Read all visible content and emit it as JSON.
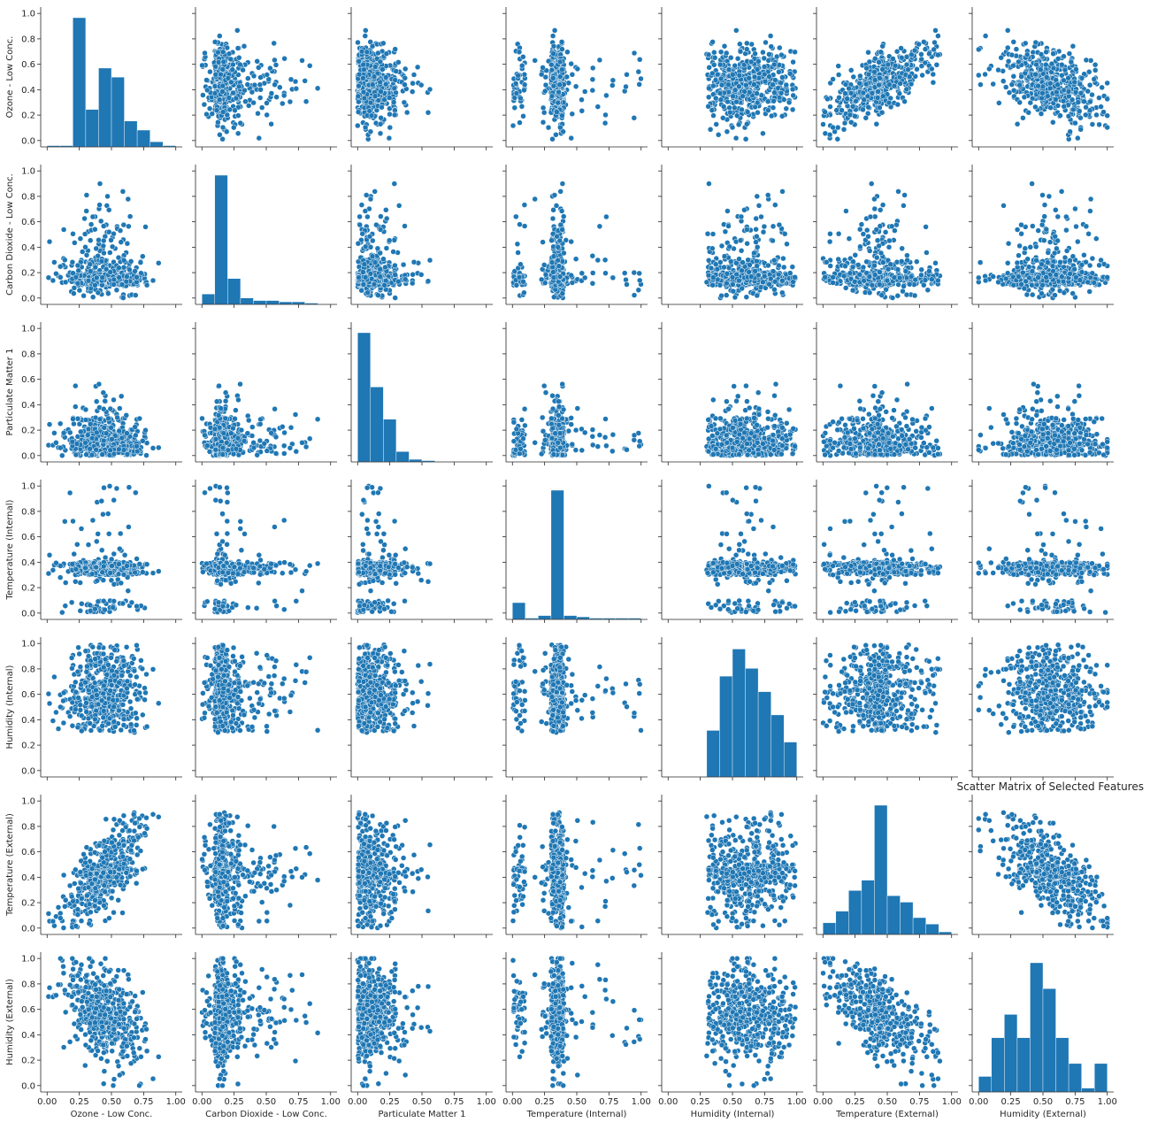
{
  "chart_data": {
    "type": "scatter",
    "kind": "pairplot",
    "title": "Scatter Matrix of Selected Features",
    "variables": [
      "Ozone - Low Conc.",
      "Carbon Dioxide - Low Conc.",
      "Particulate Matter 1",
      "Temperature (Internal)",
      "Humidity (Internal)",
      "Temperature (External)",
      "Humidity (External)"
    ],
    "x_ticks": [
      "0.00",
      "0.25",
      "0.50",
      "0.75",
      "1.00"
    ],
    "x_tick_values": [
      0,
      0.25,
      0.5,
      0.75,
      1.0
    ],
    "y_ticks": [
      "0.0",
      "0.2",
      "0.4",
      "0.6",
      "0.8",
      "1.0"
    ],
    "y_tick_values": [
      0,
      0.2,
      0.4,
      0.6,
      0.8,
      1.0
    ],
    "xlim": [
      -0.05,
      1.05
    ],
    "ylim": [
      -0.05,
      1.05
    ],
    "color": "#1f77b4",
    "grid": false,
    "histograms": [
      {
        "variable": "Ozone - Low Conc.",
        "bin_edges": [
          0,
          0.1,
          0.2,
          0.3,
          0.4,
          0.5,
          0.6,
          0.7,
          0.8,
          0.9,
          1.0
        ],
        "heights": [
          0.01,
          0.01,
          1.0,
          0.29,
          0.61,
          0.54,
          0.2,
          0.13,
          0.04,
          0.01
        ]
      },
      {
        "variable": "Carbon Dioxide - Low Conc.",
        "bin_edges": [
          0,
          0.1,
          0.2,
          0.3,
          0.4,
          0.5,
          0.6,
          0.7,
          0.8,
          0.9,
          1.0
        ],
        "heights": [
          0.08,
          1.0,
          0.2,
          0.05,
          0.03,
          0.03,
          0.02,
          0.02,
          0.01,
          0.0
        ]
      },
      {
        "variable": "Particulate Matter 1",
        "bin_edges": [
          0,
          0.1,
          0.2,
          0.3,
          0.4,
          0.5,
          0.6,
          0.7,
          0.8,
          0.9,
          1.0
        ],
        "heights": [
          1.0,
          0.58,
          0.33,
          0.08,
          0.02,
          0.01,
          0.0,
          0.0,
          0.0,
          0.0
        ]
      },
      {
        "variable": "Temperature (Internal)",
        "bin_edges": [
          0,
          0.1,
          0.2,
          0.3,
          0.4,
          0.5,
          0.6,
          0.7,
          0.8,
          0.9,
          1.0
        ],
        "heights": [
          0.13,
          0.01,
          0.03,
          1.0,
          0.03,
          0.02,
          0.01,
          0.01,
          0.01,
          0.01
        ]
      },
      {
        "variable": "Humidity (Internal)",
        "bin_edges": [
          0.3,
          0.4,
          0.5,
          0.6,
          0.7,
          0.8,
          0.9,
          1.0
        ],
        "heights": [
          0.36,
          0.78,
          0.99,
          0.84,
          0.66,
          0.48,
          0.27
        ]
      },
      {
        "variable": "Temperature (External)",
        "bin_edges": [
          0,
          0.1,
          0.2,
          0.3,
          0.4,
          0.5,
          0.6,
          0.7,
          0.8,
          0.9,
          1.0
        ],
        "heights": [
          0.09,
          0.18,
          0.34,
          0.42,
          1.0,
          0.3,
          0.25,
          0.13,
          0.08,
          0.02
        ]
      },
      {
        "variable": "Humidity (External)",
        "bin_edges": [
          0,
          0.1,
          0.2,
          0.3,
          0.4,
          0.5,
          0.6,
          0.7,
          0.8,
          0.9,
          1.0
        ],
        "heights": [
          0.12,
          0.42,
          0.6,
          0.42,
          1.0,
          0.8,
          0.42,
          0.22,
          0.03,
          0.22
        ]
      }
    ]
  }
}
